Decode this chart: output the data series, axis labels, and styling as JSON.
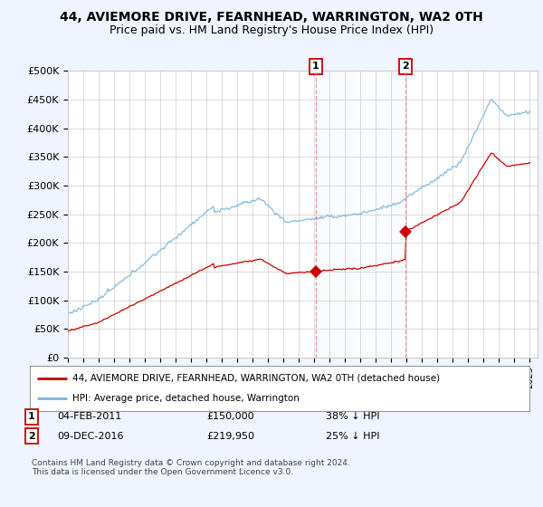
{
  "title": "44, AVIEMORE DRIVE, FEARNHEAD, WARRINGTON, WA2 0TH",
  "subtitle": "Price paid vs. HM Land Registry's House Price Index (HPI)",
  "ylim": [
    0,
    500000
  ],
  "yticks": [
    0,
    50000,
    100000,
    150000,
    200000,
    250000,
    300000,
    350000,
    400000,
    450000,
    500000
  ],
  "ytick_labels": [
    "£0",
    "£50K",
    "£100K",
    "£150K",
    "£200K",
    "£250K",
    "£300K",
    "£350K",
    "£400K",
    "£450K",
    "£500K"
  ],
  "xlim_start": 1995.0,
  "xlim_end": 2025.5,
  "hpi_color": "#7ab3e0",
  "price_color": "#cc0000",
  "sale1_date": 2011.09,
  "sale1_price": 150000,
  "sale2_date": 2016.93,
  "sale2_price": 219950,
  "legend_line1": "44, AVIEMORE DRIVE, FEARNHEAD, WARRINGTON, WA2 0TH (detached house)",
  "legend_line2": "HPI: Average price, detached house, Warrington",
  "footer": "Contains HM Land Registry data © Crown copyright and database right 2024.\nThis data is licensed under the Open Government Licence v3.0.",
  "background_color": "#f0f4ff",
  "title_fontsize": 10,
  "subtitle_fontsize": 9
}
